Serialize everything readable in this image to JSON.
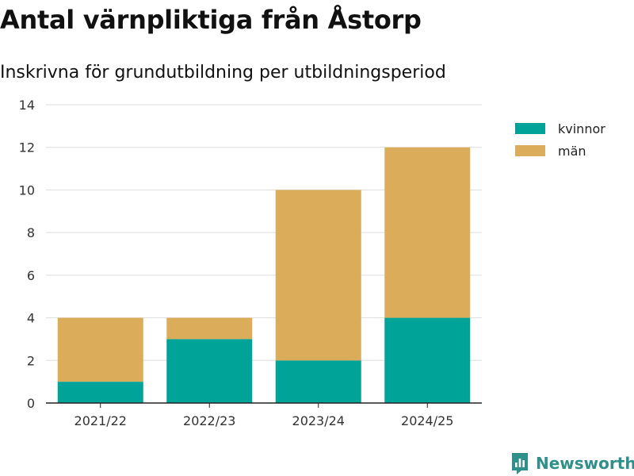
{
  "title": "Antal värnpliktiga från Åstorp",
  "subtitle": "Inskrivna för grundutbildning per utbildningsperiod",
  "brand": {
    "name": "Newsworthy",
    "icon": "newsworthy-logo-icon",
    "color": "#2f8f8a"
  },
  "chart_data": {
    "type": "bar",
    "stacked": true,
    "categories": [
      "2021/22",
      "2022/23",
      "2023/24",
      "2024/25"
    ],
    "series": [
      {
        "name": "kvinnor",
        "values": [
          1,
          3,
          2,
          4
        ],
        "color": "#00a398"
      },
      {
        "name": "män",
        "values": [
          3,
          1,
          8,
          8
        ],
        "color": "#dbad5a"
      }
    ],
    "ylim": [
      0,
      14
    ],
    "yticks": [
      0,
      2,
      4,
      6,
      8,
      10,
      12,
      14
    ],
    "grid": true,
    "legend_position": "right"
  }
}
